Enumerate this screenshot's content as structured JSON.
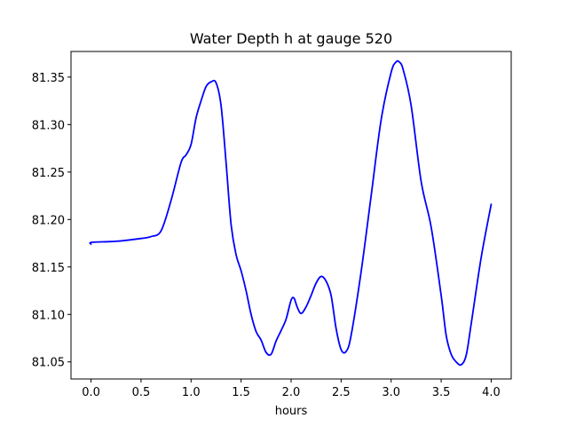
{
  "chart_data": {
    "type": "line",
    "title": "Water Depth h at gauge 520",
    "xlabel": "hours",
    "ylabel": "",
    "xlim": [
      -0.2,
      4.2
    ],
    "ylim": [
      81.032,
      81.377
    ],
    "grid": false,
    "xticks": [
      0.0,
      0.5,
      1.0,
      1.5,
      2.0,
      2.5,
      3.0,
      3.5,
      4.0
    ],
    "xtick_labels": [
      "0.0",
      "0.5",
      "1.0",
      "1.5",
      "2.0",
      "2.5",
      "3.0",
      "3.5",
      "4.0"
    ],
    "yticks": [
      81.05,
      81.1,
      81.15,
      81.2,
      81.25,
      81.3,
      81.35
    ],
    "ytick_labels": [
      "81.05",
      "81.10",
      "81.15",
      "81.20",
      "81.25",
      "81.30",
      "81.35"
    ],
    "series": [
      {
        "color": "#0000ff",
        "x": [
          0.0,
          0.01,
          0.25,
          0.5,
          0.6,
          0.7,
          0.8,
          0.9,
          0.95,
          1.0,
          1.05,
          1.1,
          1.15,
          1.2,
          1.25,
          1.3,
          1.35,
          1.4,
          1.45,
          1.5,
          1.55,
          1.6,
          1.65,
          1.7,
          1.75,
          1.8,
          1.85,
          1.9,
          1.95,
          2.0,
          2.03,
          2.06,
          2.1,
          2.15,
          2.2,
          2.25,
          2.3,
          2.35,
          2.4,
          2.45,
          2.5,
          2.55,
          2.6,
          2.7,
          2.8,
          2.9,
          3.0,
          3.05,
          3.08,
          3.12,
          3.2,
          3.3,
          3.4,
          3.5,
          3.55,
          3.6,
          3.65,
          3.7,
          3.75,
          3.8,
          3.9,
          4.0
        ],
        "y": [
          81.174,
          81.176,
          81.177,
          81.18,
          81.182,
          81.188,
          81.22,
          81.26,
          81.268,
          81.279,
          81.307,
          81.325,
          81.34,
          81.345,
          81.344,
          81.32,
          81.26,
          81.195,
          81.163,
          81.146,
          81.125,
          81.1,
          81.082,
          81.073,
          81.06,
          81.058,
          81.072,
          81.083,
          81.095,
          81.115,
          81.117,
          81.108,
          81.101,
          81.108,
          81.12,
          81.133,
          81.14,
          81.135,
          81.12,
          81.085,
          81.063,
          81.061,
          81.078,
          81.145,
          81.225,
          81.305,
          81.355,
          81.366,
          81.366,
          81.358,
          81.32,
          81.24,
          81.192,
          81.12,
          81.078,
          81.058,
          81.05,
          81.047,
          81.057,
          81.09,
          81.16,
          81.216
        ]
      }
    ]
  }
}
